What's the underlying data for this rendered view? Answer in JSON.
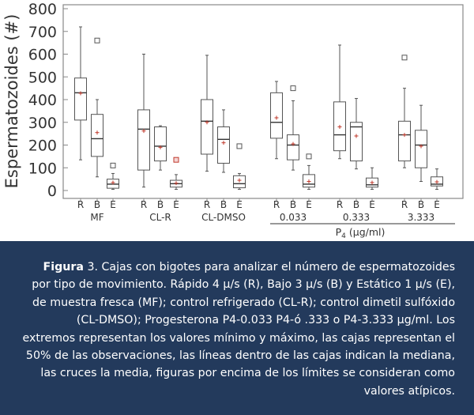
{
  "chart_data": {
    "type": "box",
    "ylabel": "Espermatozoides (#)",
    "ylim": [
      0,
      800
    ],
    "yticks": [
      0,
      100,
      200,
      300,
      400,
      500,
      600,
      700,
      800
    ],
    "xlabel": "P4 (μg/ml)",
    "xlabel_subscript": "4",
    "groups": [
      {
        "label": "MF",
        "underlined": false,
        "categories": [
          "R",
          "B",
          "E"
        ],
        "boxes": [
          {
            "category": "R",
            "min": 135,
            "q1": 310,
            "median": 430,
            "q3": 495,
            "max": 720,
            "mean": 428,
            "outliers": []
          },
          {
            "category": "B",
            "min": 60,
            "q1": 150,
            "median": 228,
            "q3": 335,
            "max": 400,
            "mean": 255,
            "outliers": [
              660
            ]
          },
          {
            "category": "E",
            "min": 5,
            "q1": 10,
            "median": 28,
            "q3": 50,
            "max": 75,
            "mean": 35,
            "outliers": [
              110
            ]
          }
        ]
      },
      {
        "label": "CL-R",
        "underlined": false,
        "categories": [
          "R",
          "B",
          "E"
        ],
        "boxes": [
          {
            "category": "R",
            "min": 15,
            "q1": 90,
            "median": 270,
            "q3": 355,
            "max": 600,
            "mean": 262,
            "outliers": []
          },
          {
            "category": "B",
            "min": 90,
            "q1": 130,
            "median": 195,
            "q3": 280,
            "max": 285,
            "mean": 190,
            "outliers": []
          },
          {
            "category": "E",
            "min": 5,
            "q1": 15,
            "median": 30,
            "q3": 45,
            "max": 70,
            "mean": 32,
            "outliers": [
              135
            ]
          }
        ]
      },
      {
        "label": "CL-DMSO",
        "underlined": false,
        "categories": [
          "R",
          "B",
          "E"
        ],
        "boxes": [
          {
            "category": "R",
            "min": 85,
            "q1": 160,
            "median": 305,
            "q3": 400,
            "max": 595,
            "mean": 300,
            "outliers": []
          },
          {
            "category": "B",
            "min": 80,
            "q1": 120,
            "median": 225,
            "q3": 280,
            "max": 355,
            "mean": 210,
            "outliers": []
          },
          {
            "category": "E",
            "min": 5,
            "q1": 12,
            "median": 30,
            "q3": 65,
            "max": 75,
            "mean": 45,
            "outliers": [
              195
            ]
          }
        ]
      },
      {
        "label": "0.033",
        "underlined": true,
        "categories": [
          "R",
          "B",
          "E"
        ],
        "boxes": [
          {
            "category": "R",
            "min": 140,
            "q1": 230,
            "median": 300,
            "q3": 430,
            "max": 480,
            "mean": 320,
            "outliers": []
          },
          {
            "category": "B",
            "min": 90,
            "q1": 135,
            "median": 200,
            "q3": 245,
            "max": 395,
            "mean": 205,
            "outliers": [
              450
            ]
          },
          {
            "category": "E",
            "min": 5,
            "q1": 15,
            "median": 28,
            "q3": 70,
            "max": 110,
            "mean": 40,
            "outliers": [
              150
            ]
          }
        ]
      },
      {
        "label": "0.333",
        "underlined": true,
        "categories": [
          "R",
          "B",
          "E"
        ],
        "boxes": [
          {
            "category": "R",
            "min": 140,
            "q1": 175,
            "median": 245,
            "q3": 390,
            "max": 640,
            "mean": 280,
            "outliers": []
          },
          {
            "category": "B",
            "min": 95,
            "q1": 130,
            "median": 280,
            "q3": 300,
            "max": 405,
            "mean": 240,
            "outliers": []
          },
          {
            "category": "E",
            "min": 5,
            "q1": 15,
            "median": 25,
            "q3": 55,
            "max": 100,
            "mean": 35,
            "outliers": []
          }
        ]
      },
      {
        "label": "3.333",
        "underlined": true,
        "categories": [
          "R",
          "B",
          "E"
        ],
        "boxes": [
          {
            "category": "R",
            "min": 100,
            "q1": 130,
            "median": 245,
            "q3": 305,
            "max": 450,
            "mean": 245,
            "outliers": [
              585
            ]
          },
          {
            "category": "B",
            "min": 40,
            "q1": 100,
            "median": 200,
            "q3": 265,
            "max": 375,
            "mean": 195,
            "outliers": []
          },
          {
            "category": "E",
            "min": 5,
            "q1": 20,
            "median": 28,
            "q3": 60,
            "max": 95,
            "mean": 38,
            "outliers": []
          }
        ]
      }
    ],
    "colors": {
      "box": "#555555",
      "mean": "#c0392b",
      "outlier_red": "#c0392b",
      "frame": "#888888",
      "text": "#333333"
    }
  },
  "caption": {
    "label": "Figura",
    "number": "3.",
    "text": " Cajas con bigotes para analizar el número de espermatozoides por tipo de movimiento. Rápido 4 µ/s (R), Bajo 3 µ/s (B) y Estático 1 µ/s (E), de muestra fresca (MF); control refrigerado (CL-R); control dimetil sulfóxido (CL-DMSO); Progesterona P4-0.033 P4-ó .333 o P4-3.333 µg/ml. Los extremos representan los valores mínimo y máximo, las cajas representan el 50% de las observaciones, las líneas dentro de las cajas indican la mediana, las cruces la media, figuras por encima de los límites se consideran como valores atípicos.",
    "background": "#233a5c"
  }
}
